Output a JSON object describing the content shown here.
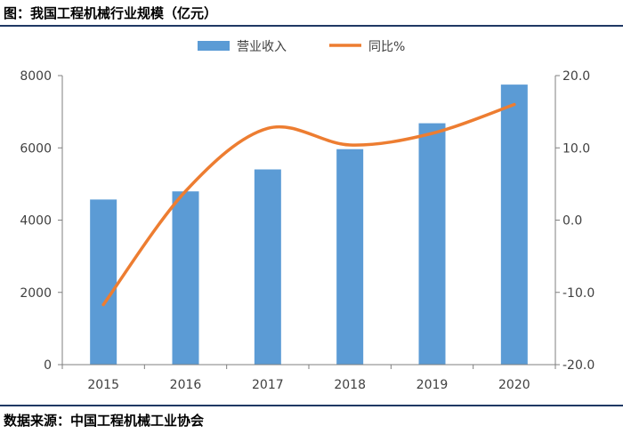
{
  "header": {
    "title": "图：我国工程机械行业规模（亿元）"
  },
  "footer": {
    "source": "数据来源：中国工程机械工业协会"
  },
  "colors": {
    "bar": "#5b9bd5",
    "line": "#ed7d31",
    "axis": "#7f7f7f",
    "rule": "#1f3864"
  },
  "chart_data": {
    "type": "bar+line",
    "title": "我国工程机械行业规模（亿元）",
    "categories": [
      "2015",
      "2016",
      "2017",
      "2018",
      "2019",
      "2020"
    ],
    "series": [
      {
        "name": "营业收入",
        "type": "bar",
        "axis": "left",
        "values": [
          4570,
          4795,
          5403,
          5964,
          6681,
          7751
        ]
      },
      {
        "name": "同比%",
        "type": "line",
        "axis": "right",
        "smooth": true,
        "values": [
          -11.7,
          4.0,
          12.7,
          10.4,
          12.0,
          16.0
        ]
      }
    ],
    "y_left": {
      "min": 0,
      "max": 8000,
      "ticks": [
        "0",
        "2000",
        "4000",
        "6000",
        "8000"
      ]
    },
    "y_right": {
      "min": -20,
      "max": 20,
      "ticks": [
        "-20.0",
        "-10.0",
        "0.0",
        "10.0",
        "20.0"
      ]
    },
    "legend": {
      "position": "top-center",
      "items": [
        "营业收入",
        "同比%"
      ]
    },
    "grid": false
  }
}
